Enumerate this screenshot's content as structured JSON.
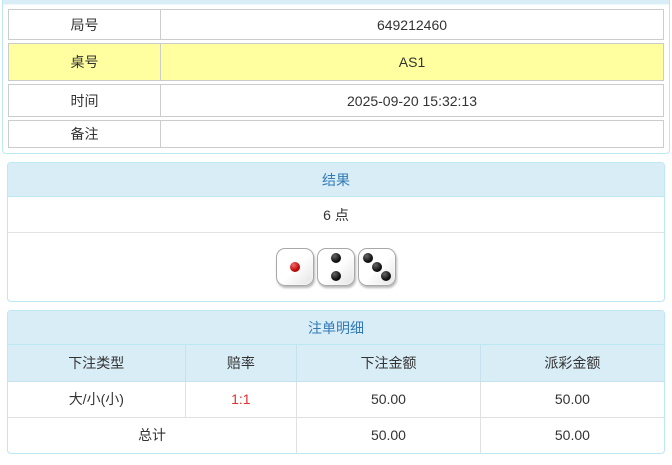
{
  "colors": {
    "header_bg": "#d9edf7",
    "header_text": "#337ab7",
    "highlight_bg": "#ffffa0",
    "odds_red": "#e03131",
    "panel_border": "#bce8f1",
    "cell_border": "#cccccc"
  },
  "info_table": {
    "rows": [
      {
        "label": "局号",
        "value": "649212460",
        "highlight": false
      },
      {
        "label": "桌号",
        "value": "AS1",
        "highlight": true
      },
      {
        "label": "时间",
        "value": "2025-09-20 15:32:13",
        "highlight": false
      },
      {
        "label": "备注",
        "value": "",
        "highlight": false
      }
    ]
  },
  "result_panel": {
    "header": "结果",
    "points": "6 点",
    "dice": [
      {
        "value": 1,
        "pip_color": "red"
      },
      {
        "value": 2,
        "pip_color": "black"
      },
      {
        "value": 3,
        "pip_color": "black"
      }
    ]
  },
  "bets_panel": {
    "header": "注单明细",
    "columns": [
      "下注类型",
      "赔率",
      "下注金额",
      "派彩金额"
    ],
    "rows": [
      {
        "type": "大/小(小)",
        "odds": "1:1",
        "bet_amount": "50.00",
        "payout_amount": "50.00"
      }
    ],
    "total": {
      "label": "总计",
      "bet_amount": "50.00",
      "payout_amount": "50.00"
    }
  }
}
